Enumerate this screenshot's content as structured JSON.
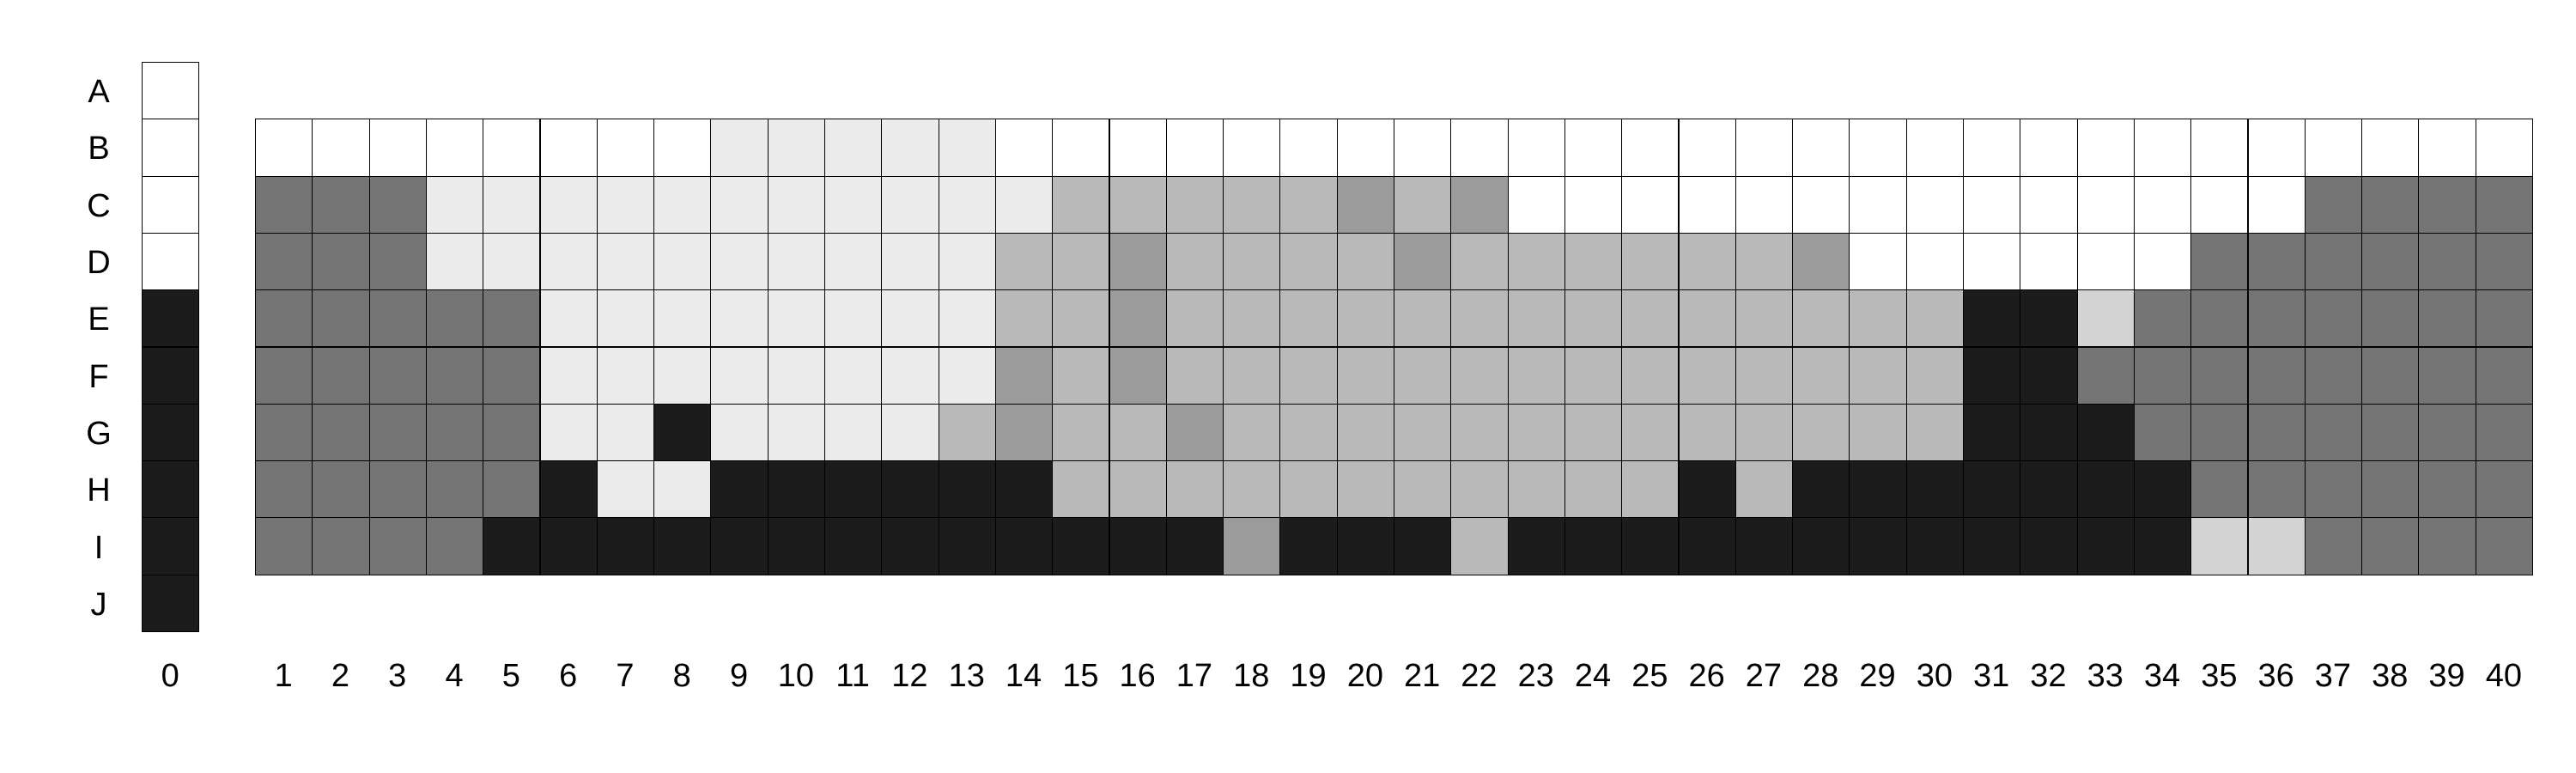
{
  "colors": {
    "0": "#ffffff",
    "1": "#ebebeb",
    "2": "#d3d3d3",
    "3": "#b9b9b9",
    "4": "#9b9b9b",
    "5": "#757575",
    "6": "#1c1c1c"
  },
  "row_labels": [
    "A",
    "B",
    "C",
    "D",
    "E",
    "F",
    "G",
    "H",
    "I",
    "J"
  ],
  "column_labels": [
    "0",
    "1",
    "2",
    "3",
    "4",
    "5",
    "6",
    "7",
    "8",
    "9",
    "10",
    "11",
    "12",
    "13",
    "14",
    "15",
    "16",
    "17",
    "18",
    "19",
    "20",
    "21",
    "22",
    "23",
    "24",
    "25",
    "26",
    "27",
    "28",
    "29",
    "30",
    "31",
    "32",
    "33",
    "34",
    "35",
    "36",
    "37",
    "38",
    "39",
    "40"
  ],
  "reference_column": [
    "0",
    "0",
    "0",
    "0",
    "6",
    "6",
    "6",
    "6",
    "6",
    "6"
  ],
  "grid_rows": [
    "B",
    "C",
    "D",
    "E",
    "F",
    "G",
    "H",
    "I"
  ],
  "grid": [
    "0000000011111000000000000000000000000000",
    "5551111111111133333434000000000000005555",
    "5551111111111334333343333334000000555555",
    "5555511111111334333333333333336625555555",
    "5555511111111434333333333333336655555555",
    "5555511611113433433333333333336665555555",
    "5555561166666633333333333636666666555555",
    "5555666666666666646663666666666666225555"
  ]
}
